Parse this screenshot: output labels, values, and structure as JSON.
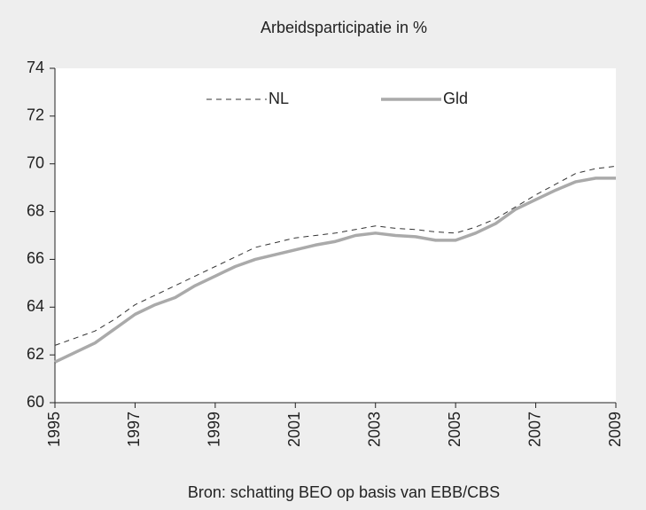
{
  "chart_data": {
    "type": "line",
    "title": "Arbeidsparticipatie in %",
    "caption": "Bron: schatting BEO op basis van EBB/CBS",
    "x": [
      1995,
      1995.5,
      1996,
      1996.5,
      1997,
      1997.5,
      1998,
      1998.5,
      1999,
      1999.5,
      2000,
      2000.5,
      2001,
      2001.5,
      2002,
      2002.5,
      2003,
      2003.5,
      2004,
      2004.5,
      2005,
      2005.5,
      2006,
      2006.5,
      2007,
      2007.5,
      2008,
      2008.5,
      2009
    ],
    "series": [
      {
        "name": "NL",
        "color": "#333333",
        "dashed": true,
        "width": 1,
        "values": [
          62.4,
          62.7,
          63.0,
          63.5,
          64.1,
          64.5,
          64.9,
          65.3,
          65.7,
          66.1,
          66.5,
          66.7,
          66.9,
          67.0,
          67.1,
          67.25,
          67.4,
          67.3,
          67.25,
          67.15,
          67.1,
          67.35,
          67.7,
          68.2,
          68.7,
          69.15,
          69.6,
          69.8,
          69.9
        ]
      },
      {
        "name": "Gld",
        "color": "#aaaaaa",
        "dashed": false,
        "width": 3.5,
        "values": [
          61.7,
          62.1,
          62.5,
          63.1,
          63.7,
          64.1,
          64.4,
          64.9,
          65.3,
          65.7,
          66.0,
          66.2,
          66.4,
          66.6,
          66.75,
          67.0,
          67.1,
          67.0,
          66.95,
          66.8,
          66.8,
          67.1,
          67.5,
          68.1,
          68.5,
          68.9,
          69.25,
          69.4,
          69.4
        ]
      }
    ],
    "xlim": [
      1995,
      2009
    ],
    "xticks": [
      1995,
      1997,
      1999,
      2001,
      2003,
      2005,
      2007,
      2009
    ],
    "ylim": [
      60,
      74
    ],
    "yticks": [
      60,
      62,
      64,
      66,
      68,
      70,
      72,
      74
    ],
    "grid": false,
    "legend": "top"
  }
}
